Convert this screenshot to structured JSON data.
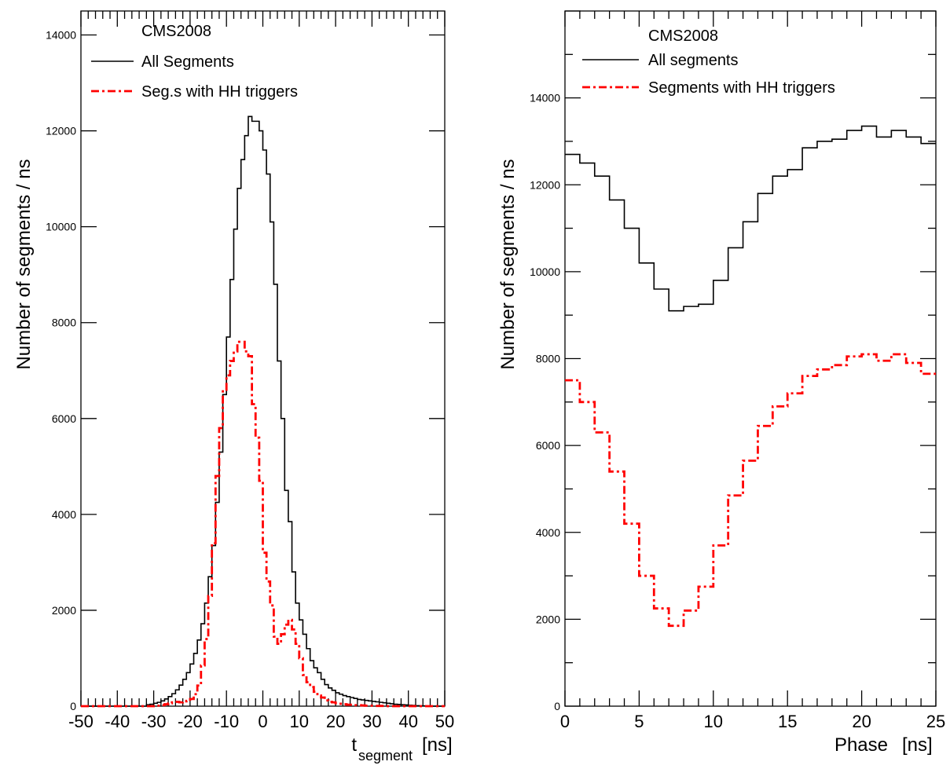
{
  "chart_data": [
    {
      "type": "line",
      "title": "",
      "xlabel": "t",
      "xlabel_subscript": "segment",
      "xlabel_unit": "[ns]",
      "ylabel": "Number of segments / ns",
      "xlim": [
        -50,
        50
      ],
      "ylim": [
        0,
        14500
      ],
      "x_ticks": [
        -50,
        -40,
        -30,
        -20,
        -10,
        0,
        10,
        20,
        30,
        40,
        50
      ],
      "x_tick_labels": [
        "-50",
        "-40",
        "-30",
        "-20",
        "-10",
        "0",
        "10",
        "20",
        "30",
        "40",
        "50"
      ],
      "y_ticks": [
        0,
        2000,
        4000,
        6000,
        8000,
        10000,
        12000,
        14000
      ],
      "y_tick_labels": [
        "0",
        "2000",
        "4000",
        "6000",
        "8000",
        "10000",
        "12000",
        "14000"
      ],
      "legend": {
        "header": "CMS2008",
        "entries": [
          "All Segments",
          "Seg.s with HH triggers"
        ]
      },
      "bin_width": 1,
      "x_start": -50,
      "series": [
        {
          "name": "All Segments",
          "color": "#000000",
          "style": "solid",
          "values": [
            0,
            0,
            0,
            0,
            0,
            0,
            0,
            0,
            0,
            0,
            0,
            0,
            0,
            0,
            0,
            0,
            0,
            0,
            30,
            40,
            60,
            80,
            110,
            150,
            200,
            260,
            340,
            440,
            560,
            700,
            880,
            1100,
            1380,
            1720,
            2150,
            2700,
            3350,
            4250,
            5300,
            6500,
            7700,
            8900,
            9950,
            10800,
            11400,
            11900,
            12300,
            12200,
            12200,
            12000,
            11600,
            11100,
            10100,
            8800,
            7200,
            6000,
            4500,
            3850,
            2800,
            2150,
            1800,
            1500,
            1200,
            950,
            800,
            700,
            560,
            450,
            380,
            330,
            280,
            250,
            220,
            200,
            180,
            160,
            140,
            130,
            120,
            110,
            100,
            90,
            80,
            70,
            60,
            50,
            40,
            35,
            30,
            25,
            20,
            15,
            10,
            5,
            5,
            0,
            0,
            0,
            0,
            0
          ]
        },
        {
          "name": "Seg.s with HH triggers",
          "color": "#ff0000",
          "style": "dashdot",
          "values": [
            0,
            0,
            0,
            0,
            0,
            0,
            0,
            0,
            0,
            0,
            0,
            0,
            0,
            0,
            0,
            0,
            0,
            0,
            0,
            0,
            0,
            10,
            20,
            40,
            60,
            80,
            90,
            80,
            100,
            110,
            150,
            250,
            430,
            850,
            1400,
            2300,
            3400,
            4800,
            5800,
            6600,
            6900,
            7200,
            7400,
            7600,
            7600,
            7400,
            7300,
            6300,
            5600,
            4700,
            3200,
            2600,
            2100,
            1450,
            1300,
            1500,
            1700,
            1800,
            1600,
            1300,
            1000,
            650,
            500,
            400,
            300,
            220,
            180,
            120,
            90,
            80,
            60,
            50,
            40,
            30,
            30,
            20,
            20,
            15,
            10,
            10,
            10,
            5,
            5,
            5,
            0,
            0,
            0,
            0,
            0,
            0,
            0,
            0,
            0,
            0,
            0,
            0,
            0,
            0,
            0,
            0
          ]
        }
      ]
    },
    {
      "type": "line",
      "title": "",
      "xlabel": "Phase",
      "xlabel_unit": "[ns]",
      "ylabel": "Number of segments / ns",
      "xlim": [
        0,
        25
      ],
      "ylim": [
        0,
        16000
      ],
      "x_ticks": [
        0,
        5,
        10,
        15,
        20,
        25
      ],
      "x_tick_labels": [
        "0",
        "5",
        "10",
        "15",
        "20",
        "25"
      ],
      "y_ticks": [
        0,
        2000,
        4000,
        6000,
        8000,
        10000,
        12000,
        14000
      ],
      "y_tick_labels": [
        "0",
        "2000",
        "4000",
        "6000",
        "8000",
        "10000",
        "12000",
        "14000"
      ],
      "legend": {
        "header": "CMS2008",
        "entries": [
          "All segments",
          "Segments with HH triggers"
        ]
      },
      "bin_width": 1,
      "x_start": 0,
      "series": [
        {
          "name": "All segments",
          "color": "#000000",
          "style": "solid",
          "values": [
            12700,
            12500,
            12200,
            11650,
            11000,
            10200,
            9600,
            9100,
            9200,
            9250,
            9800,
            10550,
            11150,
            11800,
            12200,
            12350,
            12850,
            13000,
            13050,
            13250,
            13350,
            13100,
            13250,
            13100,
            12950
          ]
        },
        {
          "name": "Segments with HH triggers",
          "color": "#ff0000",
          "style": "dashdot",
          "values": [
            7500,
            7000,
            6300,
            5400,
            4200,
            3000,
            2250,
            1850,
            2200,
            2750,
            3700,
            4850,
            5650,
            6450,
            6900,
            7200,
            7600,
            7750,
            7850,
            8050,
            8100,
            7950,
            8100,
            7900,
            7650
          ]
        }
      ]
    }
  ]
}
